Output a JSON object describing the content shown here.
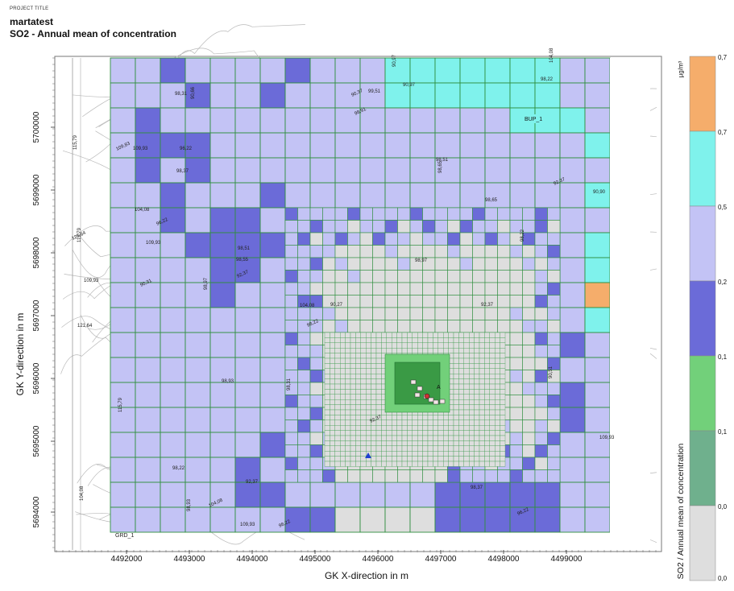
{
  "header": {
    "project_label": "PROJECT TITLE",
    "project_name": "martatest",
    "subtitle": "SO2 - Annual mean of concentration"
  },
  "axes": {
    "x_title": "GK X-direction in m",
    "y_title": "GK Y-direction in m",
    "x_ticks": [
      "4492000",
      "4493000",
      "4494000",
      "4495000",
      "4496000",
      "4497000",
      "4498000",
      "4499000"
    ],
    "y_ticks": [
      "5700000",
      "5699000",
      "5698000",
      "5697000",
      "5696000",
      "5695000",
      "5694000"
    ]
  },
  "legend": {
    "title": "SO2 / Annual mean of concentration",
    "unit": "µg/m³",
    "bands": [
      {
        "label": "0,7",
        "color": "#f5ad6b"
      },
      {
        "label": "0,7",
        "color": "#7ff2ec"
      },
      {
        "label": "0,5",
        "color": "#c3c3f5"
      },
      {
        "label": "0,2",
        "color": "#6b6bd8"
      },
      {
        "label": "0,1",
        "color": "#72d07a"
      },
      {
        "label": "0,1",
        "color": "#6fb08d"
      },
      {
        "label": "0,0",
        "color": "#dedede"
      }
    ],
    "bottom_label": "0,0"
  },
  "annotations": {
    "grid_label": "GRD_1",
    "building_label": "BUP_1",
    "source_label": "A",
    "contour_values": [
      "104,08",
      "98,22",
      "99,51",
      "90,37",
      "90,97",
      "90,97",
      "98,91",
      "98,31",
      "90,66",
      "109,83",
      "96,22",
      "109,93",
      "115,79",
      "98,37",
      "104,08",
      "121,64",
      "115,79",
      "109,93",
      "96,22",
      "98,51",
      "98,65",
      "92,37",
      "90,90",
      "98,65",
      "98,22",
      "98,51",
      "98,55",
      "92,37",
      "98,97",
      "104,08",
      "98,22",
      "90,27",
      "98,31",
      "92,37",
      "98,97",
      "92,37",
      "90,51",
      "109,93",
      "98,22",
      "104,08",
      "98,93",
      "92,37",
      "98,22",
      "109,93",
      "104,08",
      "90,31",
      "109,93",
      "121,64",
      "115,79",
      "98,93",
      "98,37",
      "96,22"
    ]
  }
}
